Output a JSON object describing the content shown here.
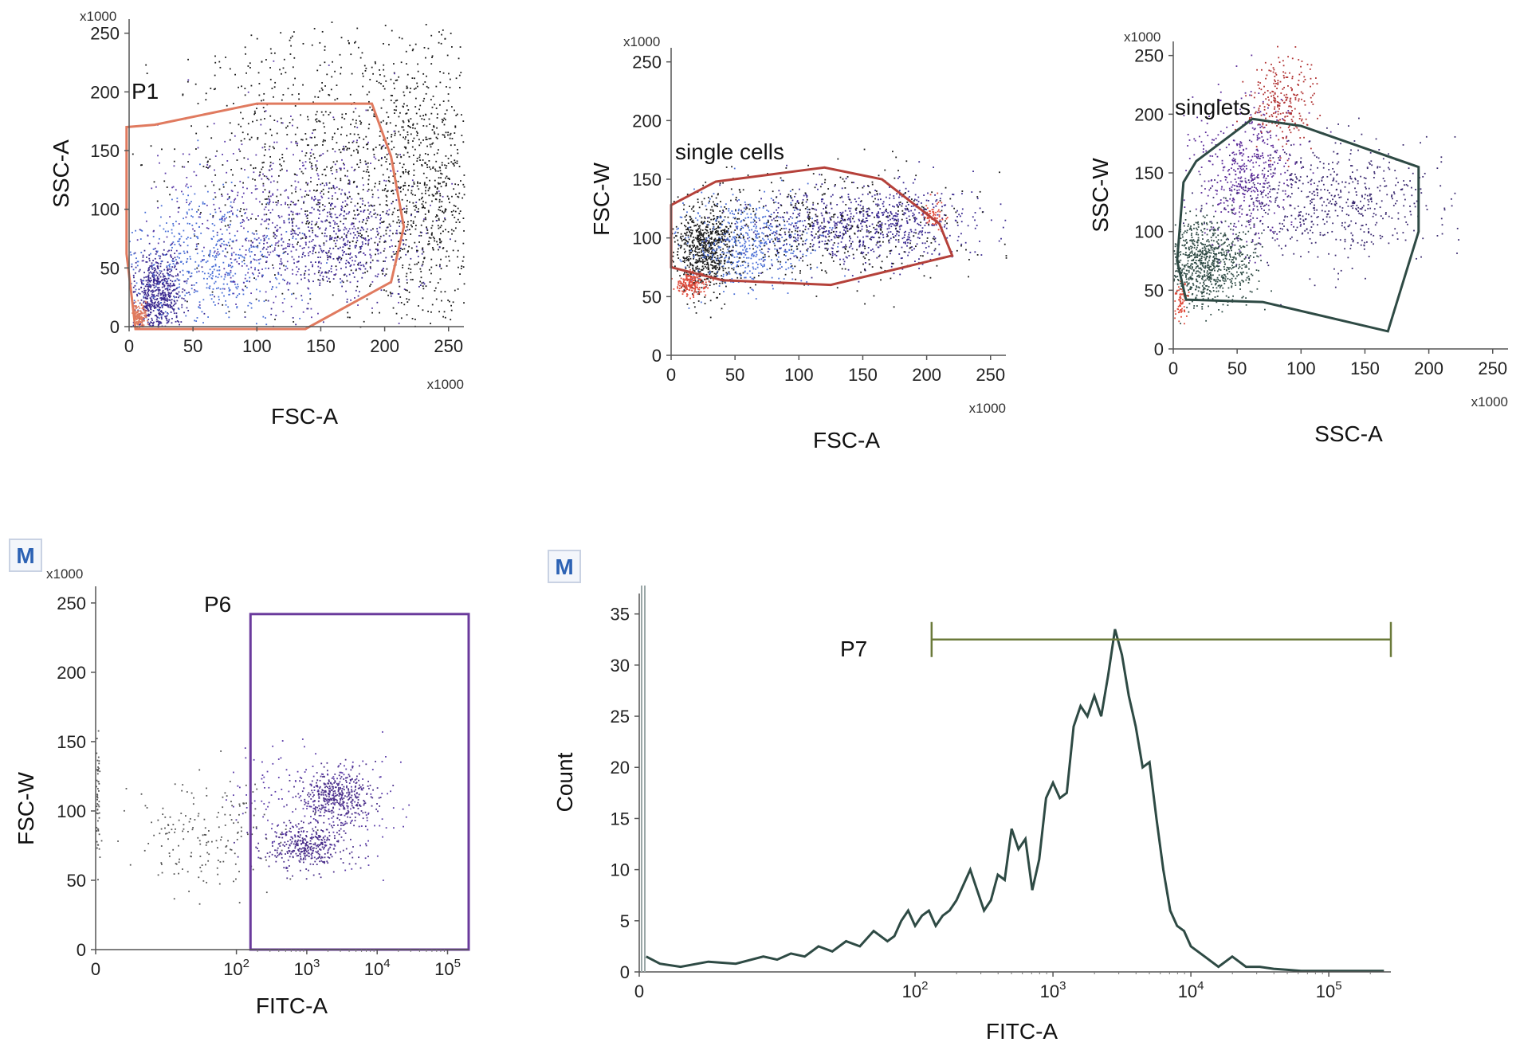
{
  "chart_data": [
    {
      "id": "p1",
      "type": "scatter",
      "xlabel": "FSC-A",
      "ylabel": "SSC-A",
      "x_multiplier": "x1000",
      "y_multiplier": "x1000",
      "xlim": [
        0,
        262
      ],
      "ylim": [
        0,
        262
      ],
      "x_ticks": [
        0,
        50,
        100,
        150,
        200,
        250
      ],
      "y_ticks": [
        0,
        50,
        100,
        150,
        200,
        250
      ],
      "colors": {
        "gate": "#e07a5f",
        "dots": [
          "#1a1a1a",
          "#3b2a90",
          "#4a6fd6",
          "#5a3aa8"
        ]
      },
      "gates": [
        {
          "name": "P1",
          "type": "polygon",
          "points": [
            [
              -2,
              170
            ],
            [
              20,
              172
            ],
            [
              100,
              190
            ],
            [
              190,
              190
            ],
            [
              205,
              145
            ],
            [
              215,
              85
            ],
            [
              205,
              38
            ],
            [
              138,
              -2
            ],
            [
              5,
              -2
            ],
            [
              -2,
              62
            ]
          ]
        }
      ],
      "clusters": [
        {
          "n": 700,
          "cx": 230,
          "sx": 22,
          "cy": 120,
          "sy": 65,
          "color": "#1a1a1a"
        },
        {
          "n": 900,
          "cx": 160,
          "sx": 60,
          "cy": 140,
          "sy": 60,
          "color": "#1a1a1a"
        },
        {
          "n": 500,
          "cx": 160,
          "sx": 35,
          "cy": 70,
          "sy": 25,
          "color": "#3b2a90"
        },
        {
          "n": 700,
          "cx": 22,
          "sx": 10,
          "cy": 25,
          "sy": 20,
          "color": "#3b2a90"
        },
        {
          "n": 500,
          "cx": 60,
          "sx": 30,
          "cy": 55,
          "sy": 30,
          "color": "#4a6fd6"
        },
        {
          "n": 500,
          "cx": 120,
          "sx": 50,
          "cy": 95,
          "sy": 40,
          "color": "#5a3aa8"
        },
        {
          "n": 150,
          "cx": 8,
          "sx": 3,
          "cy": 8,
          "sy": 6,
          "color": "#e07a5f"
        }
      ]
    },
    {
      "id": "single-cells",
      "type": "scatter",
      "xlabel": "FSC-A",
      "ylabel": "FSC-W",
      "x_multiplier": "x1000",
      "y_multiplier": "x1000",
      "xlim": [
        0,
        262
      ],
      "ylim": [
        0,
        262
      ],
      "x_ticks": [
        0,
        50,
        100,
        150,
        200,
        250
      ],
      "y_ticks": [
        0,
        50,
        100,
        150,
        200,
        250
      ],
      "colors": {
        "gate": "#b5413a"
      },
      "gates": [
        {
          "name": "single cells",
          "type": "polygon",
          "points": [
            [
              0,
              128
            ],
            [
              35,
              148
            ],
            [
              120,
              160
            ],
            [
              165,
              150
            ],
            [
              210,
              112
            ],
            [
              220,
              85
            ],
            [
              125,
              60
            ],
            [
              40,
              64
            ],
            [
              0,
              75
            ]
          ]
        }
      ],
      "clusters": [
        {
          "n": 700,
          "cx": 25,
          "sx": 12,
          "cy": 90,
          "sy": 18,
          "color": "#1a1a1a"
        },
        {
          "n": 500,
          "cx": 60,
          "sx": 25,
          "cy": 95,
          "sy": 20,
          "color": "#4a6fd6"
        },
        {
          "n": 800,
          "cx": 150,
          "sx": 45,
          "cy": 112,
          "sy": 15,
          "color": "#3b2a90"
        },
        {
          "n": 500,
          "cx": 120,
          "sx": 55,
          "cy": 110,
          "sy": 25,
          "color": "#1a1a1a"
        },
        {
          "n": 200,
          "cx": 15,
          "sx": 6,
          "cy": 62,
          "sy": 5,
          "color": "#e04a3a"
        },
        {
          "n": 60,
          "cx": 205,
          "sx": 5,
          "cy": 120,
          "sy": 6,
          "color": "#e04a3a"
        }
      ]
    },
    {
      "id": "singlets",
      "type": "scatter",
      "xlabel": "SSC-A",
      "ylabel": "SSC-W",
      "x_multiplier": "x1000",
      "y_multiplier": "x1000",
      "xlim": [
        0,
        262
      ],
      "ylim": [
        0,
        262
      ],
      "x_ticks": [
        0,
        50,
        100,
        150,
        200,
        250
      ],
      "y_ticks": [
        0,
        50,
        100,
        150,
        200,
        250
      ],
      "colors": {
        "gate": "#2e4a44"
      },
      "gates": [
        {
          "name": "singlets",
          "type": "polygon",
          "points": [
            [
              8,
              142
            ],
            [
              18,
              160
            ],
            [
              62,
              196
            ],
            [
              100,
              190
            ],
            [
              192,
              155
            ],
            [
              192,
              100
            ],
            [
              168,
              15
            ],
            [
              70,
              40
            ],
            [
              10,
              42
            ],
            [
              3,
              75
            ]
          ]
        }
      ],
      "clusters": [
        {
          "n": 900,
          "cx": 25,
          "sx": 18,
          "cy": 75,
          "sy": 18,
          "color": "#2e4a44"
        },
        {
          "n": 500,
          "cx": 55,
          "sx": 20,
          "cy": 150,
          "sy": 30,
          "color": "#5a2a98"
        },
        {
          "n": 600,
          "cx": 120,
          "sx": 40,
          "cy": 125,
          "sy": 25,
          "color": "#3b2a70"
        },
        {
          "n": 250,
          "cx": 85,
          "sx": 12,
          "cy": 210,
          "sy": 20,
          "color": "#b03030"
        },
        {
          "n": 80,
          "cx": 4,
          "sx": 3,
          "cy": 40,
          "sy": 10,
          "color": "#e04a3a"
        }
      ]
    },
    {
      "id": "p6",
      "type": "scatter",
      "badge": "M",
      "xlabel": "FITC-A",
      "ylabel": "FSC-W",
      "x_multiplier": "",
      "y_multiplier": "x1000",
      "x_scale": "log",
      "xlim": [
        0,
        5.3
      ],
      "ylim": [
        0,
        262
      ],
      "x_ticks": [
        {
          "pos": 0,
          "label": "0"
        },
        {
          "pos": 2,
          "base": "10",
          "exp": "2"
        },
        {
          "pos": 3,
          "base": "10",
          "exp": "3"
        },
        {
          "pos": 4,
          "base": "10",
          "exp": "4"
        },
        {
          "pos": 5,
          "base": "10",
          "exp": "5"
        }
      ],
      "y_ticks": [
        0,
        50,
        100,
        150,
        200,
        250
      ],
      "colors": {
        "gate": "#6a3a9c"
      },
      "gates": [
        {
          "name": "P6",
          "type": "rectangle",
          "x": [
            2.2,
            5.3
          ],
          "y": [
            0,
            242
          ]
        }
      ],
      "clusters": [
        {
          "n": 400,
          "cx": 3.45,
          "sx": 0.28,
          "cy": 110,
          "sy": 10,
          "color": "#4a2e8a"
        },
        {
          "n": 350,
          "cx": 3.0,
          "sx": 0.3,
          "cy": 75,
          "sy": 9,
          "color": "#4a2e8a"
        },
        {
          "n": 200,
          "cx": 3.1,
          "sx": 0.6,
          "cy": 105,
          "sy": 22,
          "color": "#5a3aa8"
        },
        {
          "n": 180,
          "cx": 1.6,
          "sx": 0.5,
          "cy": 85,
          "sy": 20,
          "color": "#555555"
        },
        {
          "n": 60,
          "cx": 0.02,
          "sx": 0.02,
          "cy": 105,
          "sy": 22,
          "color": "#555555"
        }
      ]
    },
    {
      "id": "p7",
      "type": "line",
      "badge": "M",
      "xlabel": "FITC-A",
      "ylabel": "Count",
      "x_scale": "log",
      "xlim": [
        0,
        5.45
      ],
      "ylim": [
        0,
        37
      ],
      "x_ticks": [
        {
          "pos": 0,
          "label": "0"
        },
        {
          "pos": 2,
          "base": "10",
          "exp": "2"
        },
        {
          "pos": 3,
          "base": "10",
          "exp": "3"
        },
        {
          "pos": 4,
          "base": "10",
          "exp": "4"
        },
        {
          "pos": 5,
          "base": "10",
          "exp": "5"
        }
      ],
      "y_ticks": [
        0,
        5,
        10,
        15,
        20,
        25,
        30,
        35
      ],
      "colors": {
        "line": "#2e4a44",
        "gate": "#6b7a3a"
      },
      "gates": [
        {
          "name": "P7",
          "type": "interval",
          "x": [
            2.12,
            5.45
          ],
          "y": 32.5
        }
      ],
      "x": [
        0.05,
        0.15,
        0.3,
        0.5,
        0.7,
        0.9,
        1.0,
        1.1,
        1.2,
        1.3,
        1.4,
        1.5,
        1.6,
        1.7,
        1.8,
        1.85,
        1.9,
        1.95,
        2.0,
        2.05,
        2.1,
        2.15,
        2.2,
        2.25,
        2.3,
        2.4,
        2.45,
        2.5,
        2.55,
        2.6,
        2.65,
        2.7,
        2.75,
        2.8,
        2.85,
        2.9,
        2.95,
        3.0,
        3.05,
        3.1,
        3.15,
        3.2,
        3.25,
        3.3,
        3.35,
        3.4,
        3.45,
        3.5,
        3.55,
        3.6,
        3.65,
        3.7,
        3.75,
        3.8,
        3.85,
        3.9,
        3.95,
        4.0,
        4.1,
        4.2,
        4.3,
        4.4,
        4.5,
        4.6,
        4.7,
        4.8,
        5.0,
        5.2,
        5.4
      ],
      "values": [
        1.5,
        0.8,
        0.5,
        1,
        0.8,
        1.5,
        1.2,
        1.8,
        1.5,
        2.5,
        2,
        3,
        2.5,
        4,
        3,
        3.5,
        5,
        6,
        4.5,
        5.5,
        6,
        4.5,
        5.5,
        6,
        7,
        10,
        8,
        6,
        7,
        9.5,
        9,
        14,
        12,
        13,
        8,
        11,
        17,
        18.5,
        17,
        17.5,
        24,
        26,
        25,
        27,
        25,
        29,
        33.5,
        31,
        27,
        24,
        20,
        20.5,
        15,
        10,
        6,
        4.5,
        4,
        2.5,
        1.5,
        0.5,
        1.5,
        0.5,
        0.5,
        0.3,
        0.2,
        0.1,
        0.1,
        0.1,
        0.1
      ]
    }
  ]
}
